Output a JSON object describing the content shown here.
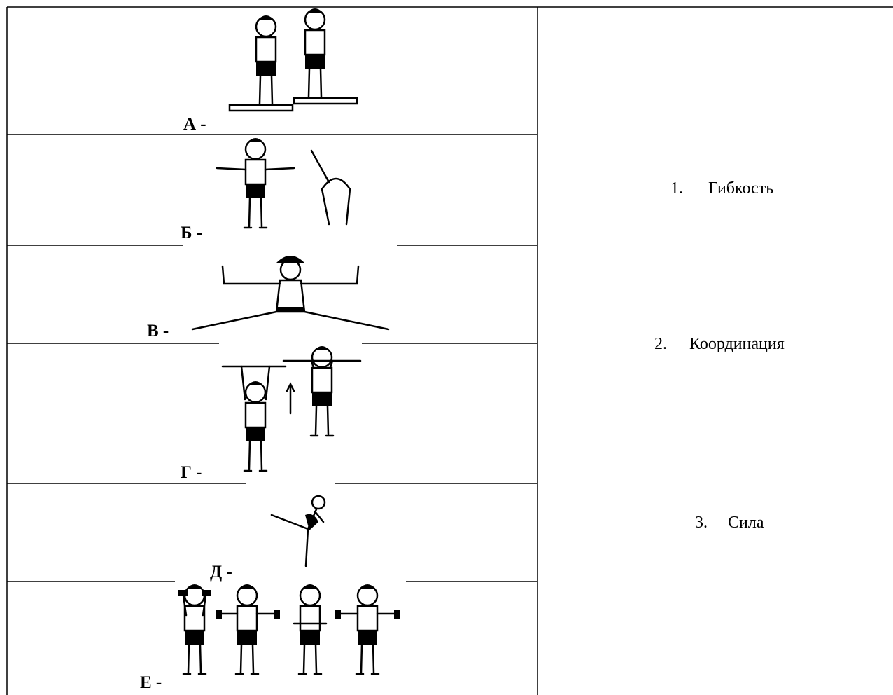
{
  "rows": [
    {
      "label": "А -"
    },
    {
      "label": "Б -"
    },
    {
      "label": "В -"
    },
    {
      "label": "Г -"
    },
    {
      "label": "Д -"
    },
    {
      "label": "Е -"
    }
  ],
  "answers": [
    {
      "number": "1.",
      "text": "Гибкость"
    },
    {
      "number": "2.",
      "text": "Координация"
    },
    {
      "number": "3.",
      "text": "Сила"
    }
  ]
}
